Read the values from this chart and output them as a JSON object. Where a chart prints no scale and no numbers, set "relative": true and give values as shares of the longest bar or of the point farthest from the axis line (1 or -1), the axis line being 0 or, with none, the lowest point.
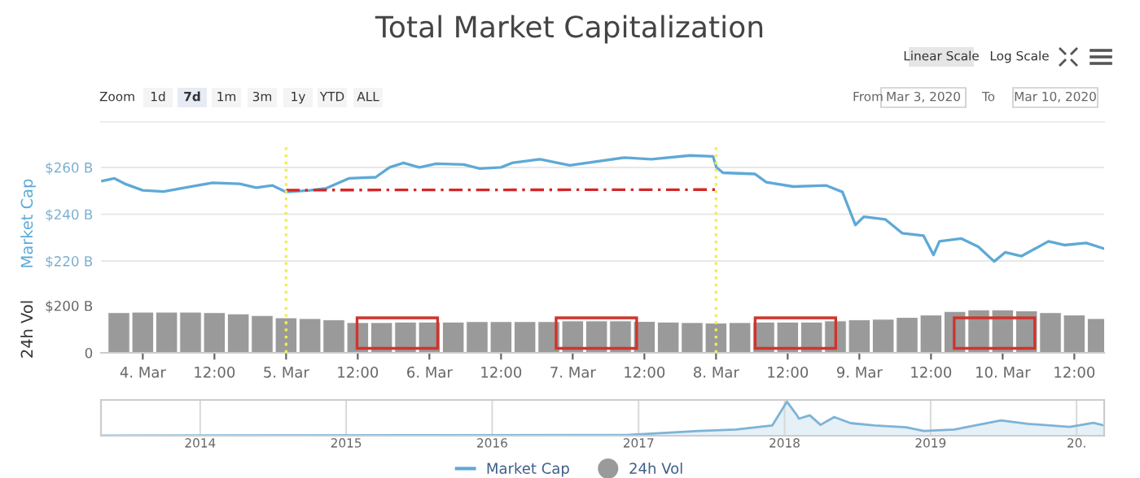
{
  "chart_data": [
    {
      "type": "line",
      "title": "Total Market Capitalization",
      "ylabel": "Market Cap",
      "tick_labels": "y",
      "grid": "y",
      "legend": "bottom",
      "marker": "none",
      "annotations": [
        "Zoom",
        "1d",
        "7d",
        "1m",
        "3m",
        "1y",
        "YTD",
        "ALL",
        "From",
        "Mar 3, 2020",
        "To",
        "Mar 10, 2020",
        "Linear Scale",
        "Log Scale"
      ],
      "xlim": [
        "2020-03-03T17:00",
        "2020-03-10T17:00"
      ],
      "ylim": [
        203,
        269
      ],
      "yticks": [
        {
          "value": 220,
          "label": "$220 B"
        },
        {
          "value": 240,
          "label": "$240 B"
        },
        {
          "value": 260,
          "label": "$260 B"
        }
      ],
      "ref_lines": [
        {
          "axis": "x",
          "value": "2020-03-05T00:00",
          "color": "#eeee55",
          "line_style": "dotted"
        },
        {
          "axis": "x",
          "value": "2020-03-08T00:00",
          "color": "#eeee55",
          "line_style": "dotted"
        }
      ],
      "series": [
        {
          "name": "Market Cap",
          "color": "#5ea9d6",
          "line_style": "solid",
          "x": [
            "2020-03-03T17:15",
            "2020-03-03T19:15",
            "2020-03-03T21:00",
            "2020-03-04T00:00",
            "2020-03-04T03:30",
            "2020-03-04T08:00",
            "2020-03-04T11:40",
            "2020-03-04T16:15",
            "2020-03-04T19:00",
            "2020-03-04T21:40",
            "2020-03-05T00:00",
            "2020-03-05T04:00",
            "2020-03-05T06:45",
            "2020-03-05T10:30",
            "2020-03-05T15:00",
            "2020-03-05T17:20",
            "2020-03-05T19:40",
            "2020-03-05T22:20",
            "2020-03-06T01:10",
            "2020-03-06T05:45",
            "2020-03-06T08:25",
            "2020-03-06T12:00",
            "2020-03-06T13:50",
            "2020-03-06T18:30",
            "2020-03-06T23:30",
            "2020-03-07T08:40",
            "2020-03-07T13:10",
            "2020-03-07T19:40",
            "2020-03-07T23:30",
            "2020-03-08T00:05",
            "2020-03-08T01:10",
            "2020-03-08T06:30",
            "2020-03-08T08:25",
            "2020-03-08T12:55",
            "2020-03-08T18:25",
            "2020-03-08T21:10",
            "2020-03-08T23:20",
            "2020-03-09T00:45",
            "2020-03-09T04:20",
            "2020-03-09T07:10",
            "2020-03-09T10:45",
            "2020-03-09T12:25",
            "2020-03-09T13:25",
            "2020-03-09T17:05",
            "2020-03-09T19:55",
            "2020-03-09T22:35",
            "2020-03-10T00:25",
            "2020-03-10T03:10",
            "2020-03-10T07:40",
            "2020-03-10T10:20",
            "2020-03-10T14:00",
            "2020-03-10T16:50"
          ],
          "values": [
            254.2,
            255.3,
            253,
            250.2,
            249.7,
            251.8,
            253.4,
            253,
            251.3,
            252.3,
            249.5,
            250.2,
            251.1,
            255.3,
            255.8,
            260,
            261.9,
            260,
            261.6,
            261.2,
            259.5,
            260,
            261.9,
            263.5,
            260.9,
            264.2,
            263.5,
            265.1,
            264.7,
            260,
            257.7,
            257.2,
            253.7,
            251.8,
            252.3,
            249.5,
            235.4,
            238.9,
            237.8,
            231.9,
            230.8,
            222.6,
            228.4,
            229.6,
            226.1,
            219.8,
            223.7,
            222.1,
            228.4,
            226.8,
            227.7,
            225.4
          ]
        },
        {
          "type": "line",
          "color": "#d62728",
          "line_style": "dashed",
          "x": [
            "2020-03-05T00:00",
            "2020-03-08T00:00"
          ],
          "values": [
            250.3,
            250.5
          ]
        }
      ]
    },
    {
      "type": "bar",
      "ylabel": "24h Vol",
      "xlim": [
        "2020-03-03T17:00",
        "2020-03-10T17:00"
      ],
      "ylim": [
        0,
        200
      ],
      "yticks": [
        0,
        {
          "value": 200,
          "label": "$200 B"
        }
      ],
      "xticks": [
        {
          "value": "2020-03-04T00:00",
          "label": "4. Mar"
        },
        {
          "value": "2020-03-04T12:00",
          "label": "12:00"
        },
        {
          "value": "2020-03-05T00:00",
          "label": "5. Mar"
        },
        {
          "value": "2020-03-05T12:00",
          "label": "12:00"
        },
        {
          "value": "2020-03-06T00:00",
          "label": "6. Mar"
        },
        {
          "value": "2020-03-06T12:00",
          "label": "12:00"
        },
        {
          "value": "2020-03-07T00:00",
          "label": "7. Mar"
        },
        {
          "value": "2020-03-07T12:00",
          "label": "12:00"
        },
        {
          "value": "2020-03-08T00:00",
          "label": "8. Mar"
        },
        {
          "value": "2020-03-08T12:00",
          "label": "12:00"
        },
        {
          "value": "2020-03-09T00:00",
          "label": "9. Mar"
        },
        {
          "value": "2020-03-09T12:00",
          "label": "12:00"
        },
        {
          "value": "2020-03-10T00:00",
          "label": "10. Mar"
        },
        {
          "value": "2020-03-10T12:00",
          "label": "12:00"
        }
      ],
      "ref_lines": [
        {
          "axis": "x",
          "value": "2020-03-05T00:00",
          "color": "#eeee55",
          "line_style": "dotted"
        },
        {
          "axis": "x",
          "value": "2020-03-08T00:00",
          "color": "#eeee55",
          "line_style": "dotted"
        }
      ],
      "series": [
        {
          "name": "24h Vol",
          "color": "#9a9a9a",
          "x": [
            "2020-03-03T20:00",
            "2020-03-04T00:00",
            "2020-03-04T04:00",
            "2020-03-04T08:00",
            "2020-03-04T12:00",
            "2020-03-04T16:00",
            "2020-03-04T20:00",
            "2020-03-05T00:00",
            "2020-03-05T04:00",
            "2020-03-05T08:00",
            "2020-03-05T12:00",
            "2020-03-05T16:00",
            "2020-03-05T20:00",
            "2020-03-06T00:00",
            "2020-03-06T04:00",
            "2020-03-06T08:00",
            "2020-03-06T12:00",
            "2020-03-06T16:00",
            "2020-03-06T20:00",
            "2020-03-07T00:00",
            "2020-03-07T04:00",
            "2020-03-07T08:00",
            "2020-03-07T12:00",
            "2020-03-07T16:00",
            "2020-03-07T20:00",
            "2020-03-08T00:00",
            "2020-03-08T04:00",
            "2020-03-08T08:00",
            "2020-03-08T12:00",
            "2020-03-08T16:00",
            "2020-03-08T20:00",
            "2020-03-09T00:00",
            "2020-03-09T04:00",
            "2020-03-09T08:00",
            "2020-03-09T12:00",
            "2020-03-09T16:00",
            "2020-03-09T20:00",
            "2020-03-10T00:00",
            "2020-03-10T04:00",
            "2020-03-10T08:00",
            "2020-03-10T12:00",
            "2020-03-10T16:00"
          ],
          "values": [
            170,
            172,
            172,
            172,
            170,
            165,
            158,
            148,
            145,
            140,
            128,
            128,
            130,
            130,
            130,
            132,
            132,
            132,
            132,
            135,
            135,
            135,
            133,
            130,
            128,
            126,
            128,
            130,
            130,
            130,
            135,
            140,
            142,
            150,
            160,
            175,
            182,
            182,
            178,
            170,
            160,
            145
          ]
        }
      ]
    },
    {
      "type": "area",
      "relative": true,
      "grid": "x",
      "xlim": [
        "2013-04-28",
        "2020-03-10"
      ],
      "xticks": [
        {
          "value": "2014-01-01",
          "label": "2014"
        },
        {
          "value": "2015-01-01",
          "label": "2015"
        },
        {
          "value": "2016-01-01",
          "label": "2016"
        },
        {
          "value": "2017-01-01",
          "label": "2017"
        },
        {
          "value": "2018-01-01",
          "label": "2018"
        },
        {
          "value": "2019-01-01",
          "label": "2019"
        },
        {
          "value": "2020-01-01",
          "label": "20."
        }
      ],
      "series": [
        {
          "color": "#7db3d8",
          "x": [
            "2013-04-28",
            "2016-12-01",
            "2017-06-01",
            "2017-09-01",
            "2017-12-01",
            "2018-01-07",
            "2018-02-01",
            "2018-02-06",
            "2018-03-05",
            "2018-04-01",
            "2018-05-05",
            "2018-06-15",
            "2018-08-15",
            "2018-11-01",
            "2018-12-15",
            "2019-03-01",
            "2019-06-26",
            "2019-09-01",
            "2019-12-15",
            "2020-02-12",
            "2020-03-10"
          ],
          "values": [
            0.005,
            0.02,
            0.14,
            0.18,
            0.3,
            1,
            0.6,
            0.5,
            0.6,
            0.32,
            0.55,
            0.37,
            0.3,
            0.25,
            0.14,
            0.18,
            0.45,
            0.35,
            0.26,
            0.38,
            0.3
          ]
        }
      ]
    }
  ]
}
